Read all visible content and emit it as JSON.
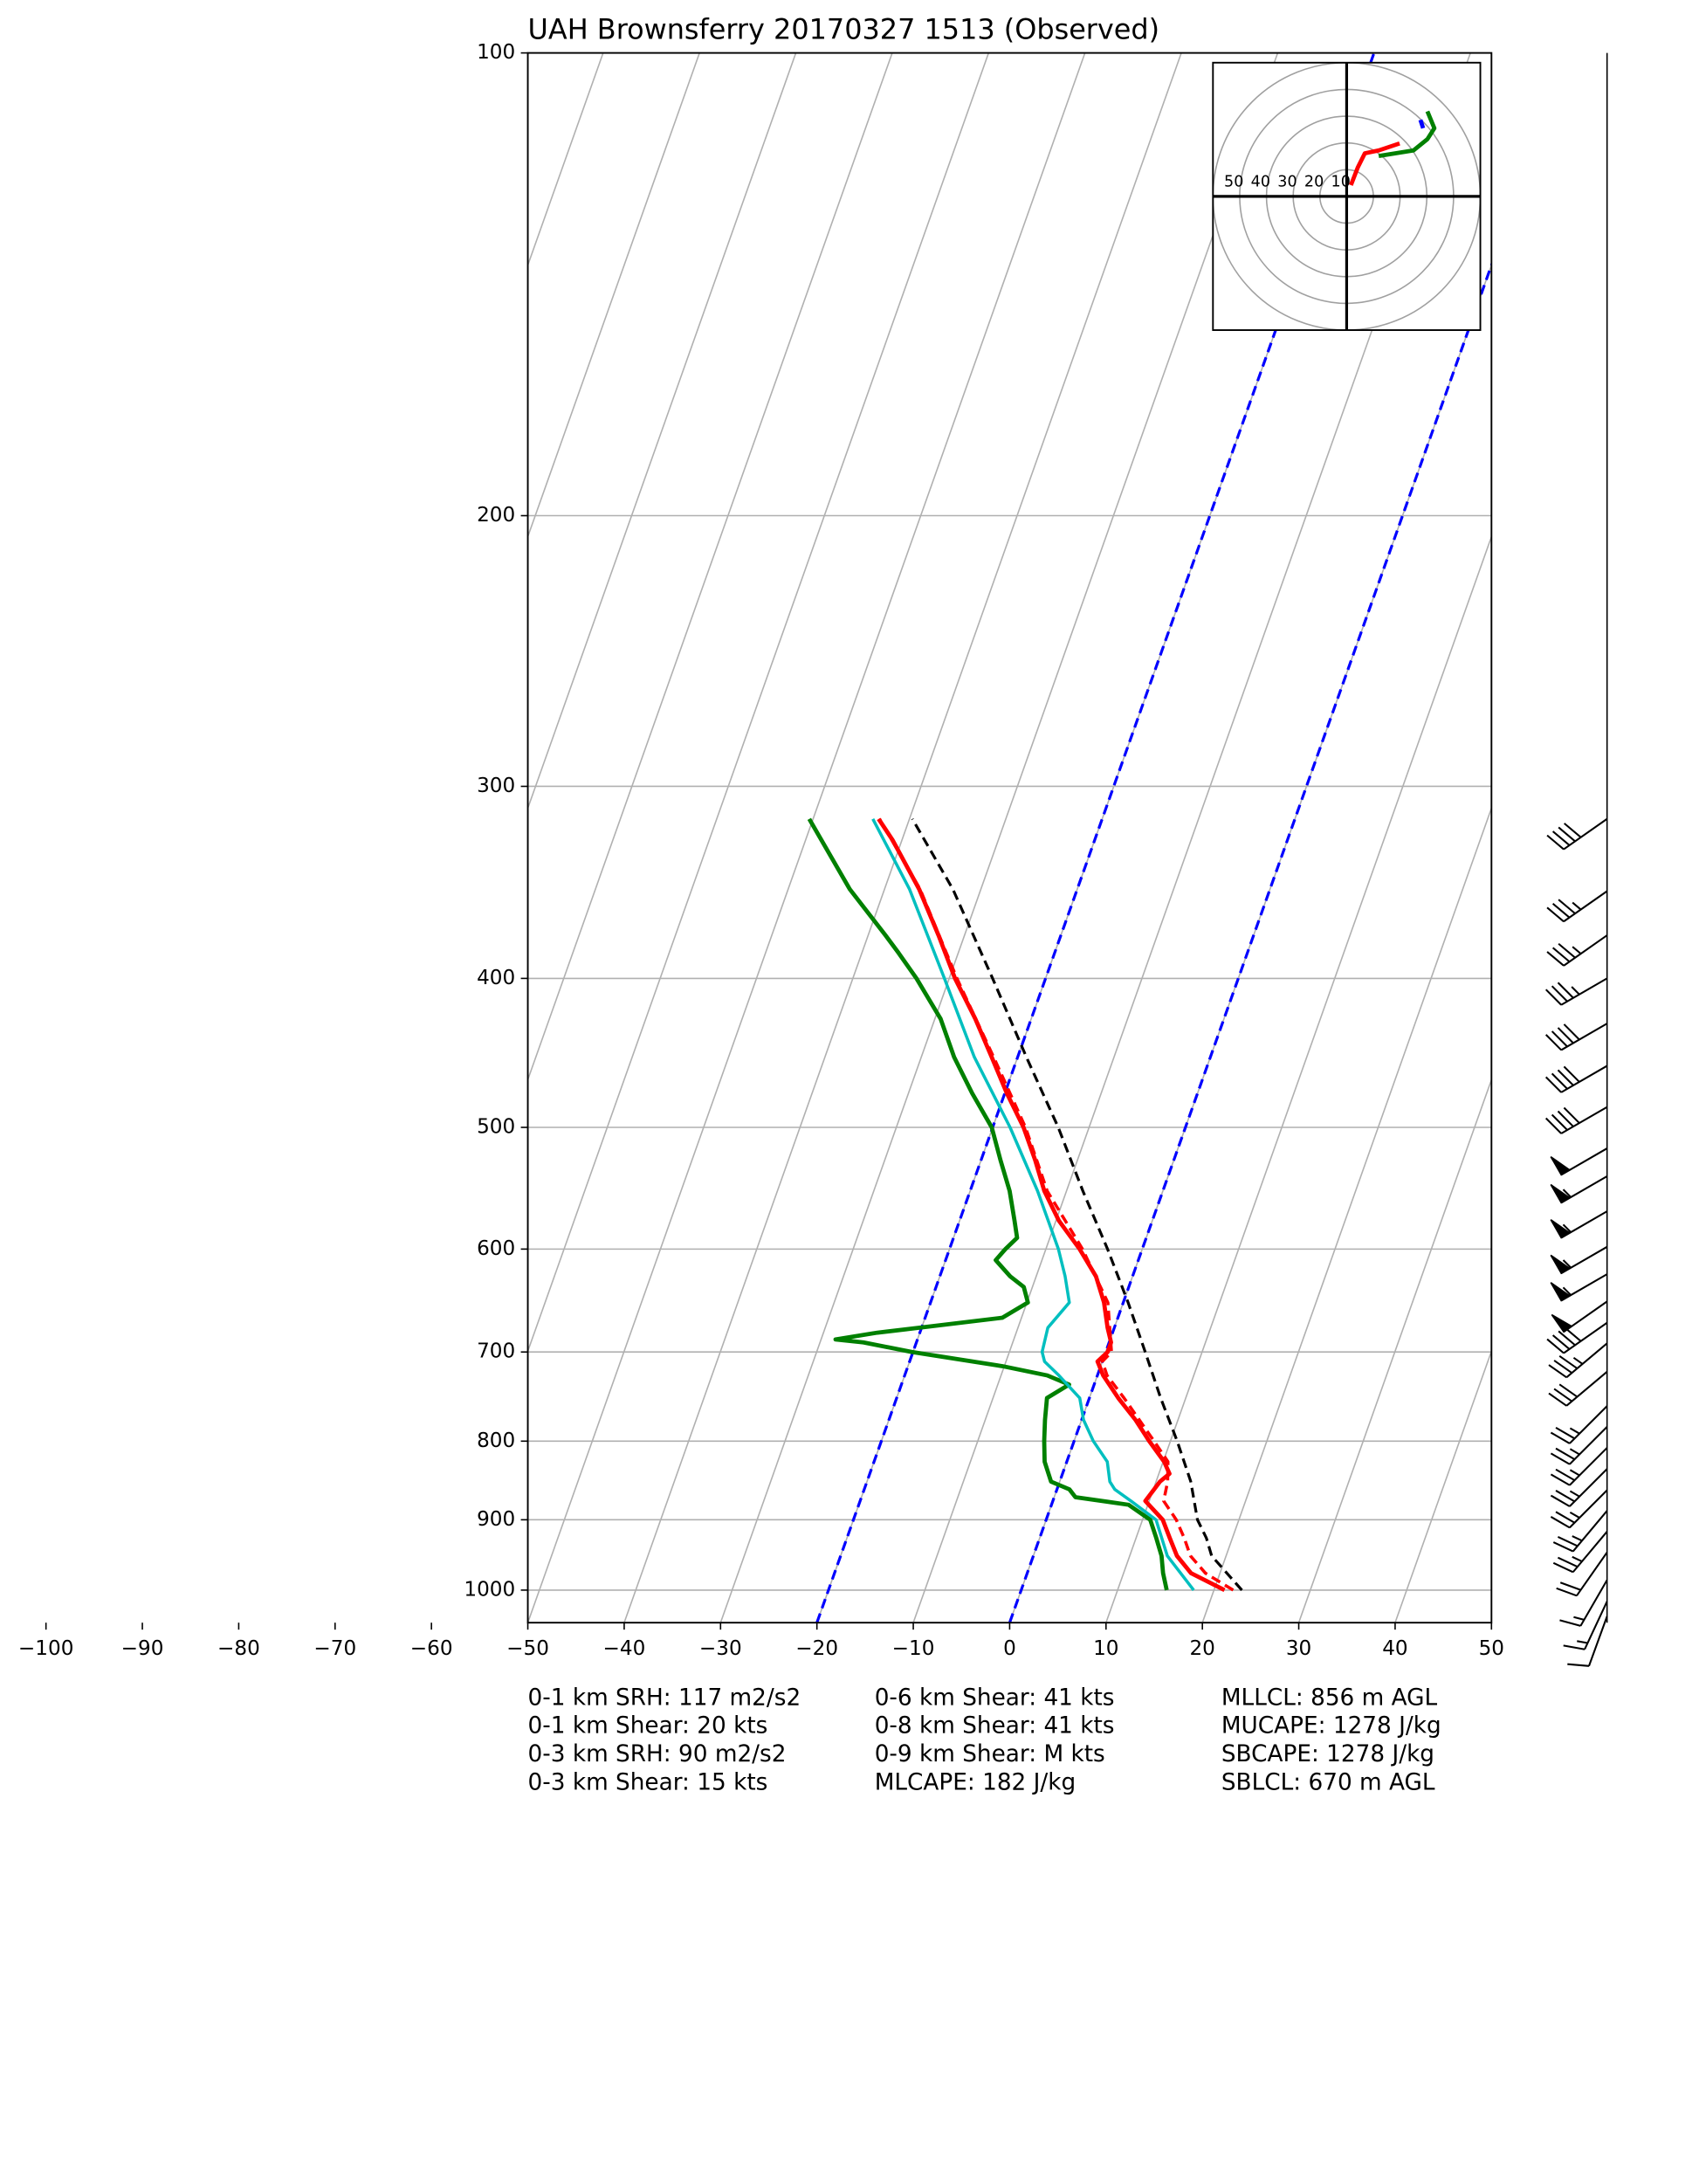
{
  "chart_data": {
    "type": "skewt",
    "title": "UAH Brownsferry 20170327 1513   (Observed)",
    "xlim": [
      -50,
      50
    ],
    "xticks": [
      {
        "value": -100,
        "label": "−100"
      },
      {
        "value": -90,
        "label": "−90"
      },
      {
        "value": -80,
        "label": "−80"
      },
      {
        "value": -70,
        "label": "−70"
      },
      {
        "value": -60,
        "label": "−60"
      },
      {
        "value": -50,
        "label": "−50"
      },
      {
        "value": -40,
        "label": "−40"
      },
      {
        "value": -30,
        "label": "−30"
      },
      {
        "value": -20,
        "label": "−20"
      },
      {
        "value": -10,
        "label": "−10"
      },
      0,
      10,
      20,
      30,
      40,
      50
    ],
    "ylim": [
      1050,
      100
    ],
    "yticks": [
      100,
      200,
      300,
      400,
      500,
      600,
      700,
      800,
      900,
      1000
    ],
    "log_y": true,
    "grid": true,
    "dashed_isotherms": {
      "values": [
        -20,
        0
      ],
      "color": "#0000ff"
    },
    "series": [
      {
        "color": "#ff0000",
        "style": "solid",
        "width": 3,
        "pressure": [
          1000,
          975,
          950,
          925,
          900,
          875,
          850,
          840,
          825,
          800,
          775,
          750,
          725,
          710,
          700,
          690,
          675,
          650,
          625,
          600,
          575,
          550,
          525,
          500,
          475,
          450,
          425,
          400,
          375,
          350,
          325,
          315
        ],
        "values": [
          21.1,
          17.0,
          14.9,
          13.5,
          12.1,
          9.6,
          10.4,
          11.1,
          10.1,
          7.8,
          5.6,
          3.0,
          0.6,
          -0.5,
          0.2,
          0.2,
          -0.7,
          -2.0,
          -3.8,
          -6.5,
          -9.7,
          -12.3,
          -14.4,
          -16.8,
          -19.8,
          -22.7,
          -25.8,
          -29.4,
          -32.7,
          -36.4,
          -41.0,
          -43.2
        ]
      },
      {
        "color": "#ff0000",
        "style": "dashed",
        "width": 2.2,
        "pressure": [
          1000,
          975,
          950,
          925,
          900,
          875,
          850,
          825,
          800,
          750,
          725,
          710,
          700,
          650,
          600,
          550,
          500,
          450,
          400,
          350,
          315
        ],
        "values": [
          22.0,
          18.5,
          16.3,
          15.0,
          13.5,
          11.5,
          11.2,
          10.5,
          8.3,
          3.6,
          1.0,
          0.0,
          0.6,
          -1.6,
          -6.2,
          -12.0,
          -16.6,
          -22.5,
          -29.2,
          -36.3,
          -43.1
        ]
      },
      {
        "color": "#008000",
        "style": "solid",
        "width": 3,
        "pressure": [
          1000,
          975,
          950,
          925,
          900,
          880,
          870,
          860,
          850,
          825,
          800,
          775,
          750,
          735,
          725,
          715,
          700,
          690,
          687,
          680,
          675,
          665,
          650,
          635,
          625,
          610,
          600,
          590,
          575,
          550,
          525,
          500,
          475,
          450,
          425,
          400,
          385,
          375,
          350,
          315
        ],
        "values": [
          15.1,
          14.1,
          13.3,
          12.1,
          10.8,
          8.0,
          2.2,
          1.3,
          -0.9,
          -2.3,
          -3.1,
          -3.8,
          -4.4,
          -2.6,
          -5.2,
          -10.2,
          -20.1,
          -25.5,
          -28.5,
          -24.4,
          -20.2,
          -12.0,
          -9.9,
          -10.9,
          -12.7,
          -14.8,
          -14.2,
          -13.4,
          -14.3,
          -15.9,
          -18.0,
          -20.1,
          -23.4,
          -26.6,
          -29.4,
          -33.4,
          -36.2,
          -38.2,
          -43.6,
          -50.4
        ]
      },
      {
        "color": "#00bfbf",
        "style": "solid",
        "width": 2.2,
        "pressure": [
          1000,
          950,
          900,
          875,
          860,
          850,
          825,
          800,
          775,
          750,
          725,
          710,
          700,
          675,
          650,
          625,
          600,
          550,
          500,
          450,
          400,
          350,
          315
        ],
        "values": [
          17.9,
          13.9,
          11.4,
          8.1,
          6.0,
          5.2,
          4.2,
          2.0,
          0.2,
          -1.0,
          -4.0,
          -6.0,
          -6.6,
          -6.9,
          -5.6,
          -7.0,
          -8.7,
          -13.0,
          -18.2,
          -24.5,
          -30.5,
          -37.4,
          -43.8
        ]
      },
      {
        "color": "#000000",
        "style": "dashed",
        "width": 2,
        "pressure": [
          1000,
          950,
          925,
          900,
          850,
          800,
          750,
          700,
          650,
          600,
          550,
          500,
          450,
          400,
          350,
          315
        ],
        "values": [
          22.9,
          18.5,
          17.3,
          15.7,
          13.6,
          10.7,
          7.4,
          4.1,
          0.5,
          -3.6,
          -8.3,
          -13.2,
          -19.1,
          -25.5,
          -32.9,
          -39.7
        ]
      }
    ],
    "wind": {
      "pressure": [
        315,
        351,
        375,
        400,
        428,
        456,
        485,
        516,
        538,
        567,
        598,
        623,
        649,
        670,
        691,
        721,
        759,
        783,
        808,
        834,
        861,
        888,
        916,
        945,
        985,
        1017,
        1040
      ],
      "speed": [
        40,
        35,
        35,
        35,
        40,
        40,
        40,
        50,
        55,
        55,
        55,
        55,
        50,
        40,
        35,
        30,
        25,
        25,
        25,
        25,
        25,
        25,
        25,
        20,
        15,
        15,
        10
      ],
      "direction": [
        235,
        235,
        235,
        240,
        240,
        240,
        240,
        240,
        240,
        240,
        240,
        240,
        235,
        235,
        230,
        230,
        225,
        225,
        225,
        225,
        225,
        220,
        220,
        215,
        210,
        205,
        200
      ]
    },
    "hodograph": {
      "rings": [
        10,
        20,
        30,
        40,
        50
      ],
      "series": [
        {
          "color": "#ff0000",
          "u": [
            1.6,
            4.2,
            6.8,
            12.0,
            19.8
          ],
          "v": [
            4.2,
            10.9,
            16.1,
            17.2,
            19.8
          ]
        },
        {
          "color": "#008000",
          "u": [
            12.0,
            25.0,
            30.2,
            32.8,
            30.2
          ],
          "v": [
            15.1,
            17.2,
            21.4,
            25.5,
            31.8
          ]
        },
        {
          "color": "#0000ff",
          "u": [
            27.6,
            28.6
          ],
          "v": [
            28.6,
            25.5
          ]
        }
      ]
    },
    "stats": [
      [
        "0-1 km SRH: 117 m2/s2",
        "0-1 km Shear: 20 kts",
        "0-3 km SRH: 90 m2/s2",
        "0-3 km Shear: 15 kts"
      ],
      [
        "0-6 km Shear: 41 kts",
        "0-8 km Shear: 41 kts",
        "0-9 km Shear: M kts",
        "MLCAPE: 182 J/kg"
      ],
      [
        "MLLCL: 856 m AGL",
        "MUCAPE: 1278 J/kg",
        "SBCAPE: 1278 J/kg",
        "SBLCL: 670 m AGL"
      ]
    ]
  }
}
